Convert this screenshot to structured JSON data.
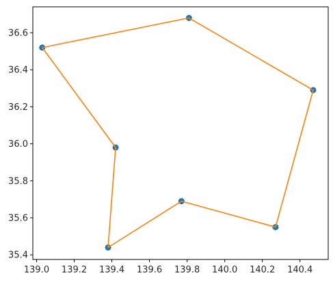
{
  "chart_data": {
    "type": "line",
    "title": "",
    "xlabel": "",
    "ylabel": "",
    "xlim": [
      138.98,
      140.55
    ],
    "ylim": [
      35.375,
      36.74
    ],
    "xticks": [
      139.0,
      139.2,
      139.4,
      139.6,
      139.8,
      140.0,
      140.2,
      140.4
    ],
    "xtick_labels": [
      "139.0",
      "139.2",
      "139.4",
      "139.6",
      "139.8",
      "140.0",
      "140.2",
      "140.4"
    ],
    "yticks": [
      35.4,
      35.6,
      35.8,
      36.0,
      36.2,
      36.4,
      36.6
    ],
    "ytick_labels": [
      "35.4",
      "35.6",
      "35.8",
      "36.0",
      "36.2",
      "36.4",
      "36.6"
    ],
    "grid": false,
    "legend": "none",
    "series": [
      {
        "kind": "scatter",
        "color": "#1f77b4",
        "points": [
          {
            "x": 139.03,
            "y": 36.52
          },
          {
            "x": 139.81,
            "y": 36.68
          },
          {
            "x": 140.47,
            "y": 36.29
          },
          {
            "x": 140.27,
            "y": 35.55
          },
          {
            "x": 139.77,
            "y": 35.69
          },
          {
            "x": 139.38,
            "y": 35.44
          },
          {
            "x": 139.42,
            "y": 35.98
          }
        ]
      },
      {
        "kind": "line",
        "color": "#ff7f0e",
        "points": [
          {
            "x": 139.03,
            "y": 36.52
          },
          {
            "x": 139.81,
            "y": 36.68
          },
          {
            "x": 140.47,
            "y": 36.29
          },
          {
            "x": 140.27,
            "y": 35.55
          },
          {
            "x": 139.77,
            "y": 35.69
          },
          {
            "x": 139.38,
            "y": 35.44
          },
          {
            "x": 139.42,
            "y": 35.98
          },
          {
            "x": 139.03,
            "y": 36.52
          }
        ]
      }
    ]
  }
}
